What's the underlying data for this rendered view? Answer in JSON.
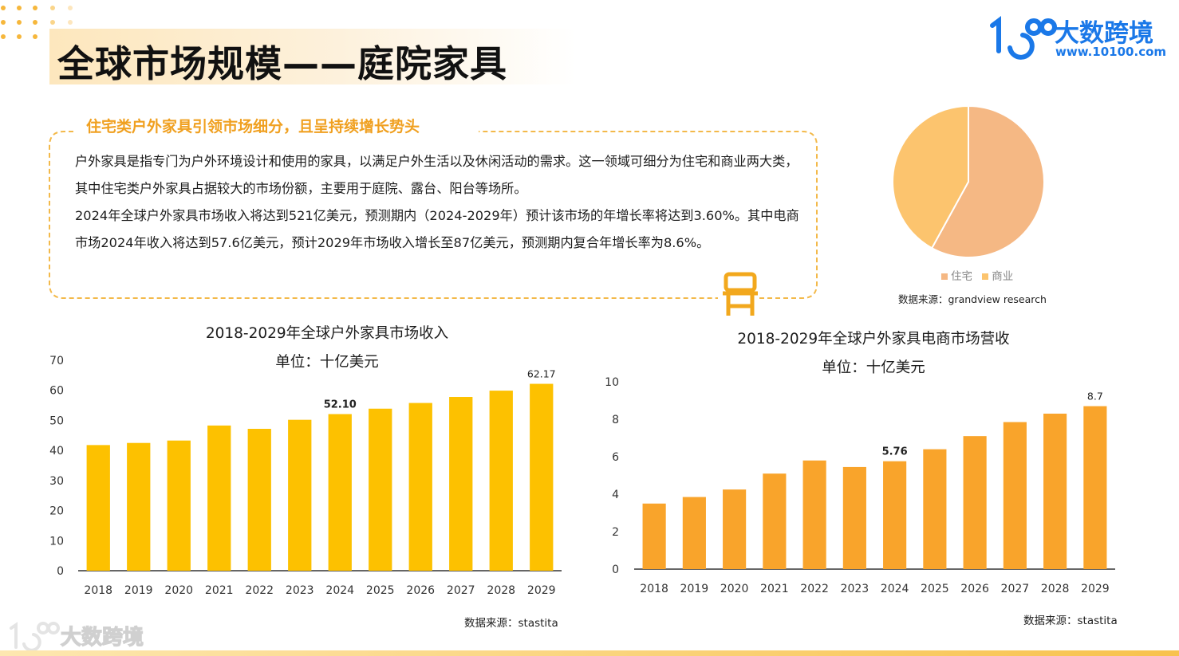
{
  "page": {
    "title": "全球市场规模——庭院家具",
    "logo_name": "大数跨境",
    "logo_url": "www.10100.com",
    "watermark": "大数跨境"
  },
  "summary": {
    "heading": "住宅类户外家具引领市场细分，且呈持续增长势头",
    "paragraph1": "户外家具是指专门为户外环境设计和使用的家具，以满足户外生活以及休闲活动的需求。这一领域可细分为住宅和商业两大类，其中住宅类户外家具占据较大的市场份额，主要用于庭院、露台、阳台等场所。",
    "paragraph2": "2024年全球户外家具市场收入将达到521亿美元，预测期内（2024-2029年）预计该市场的年增长率将达到3.60%。其中电商市场2024年收入将达到57.6亿美元，预计2029年市场收入增长至87亿美元，预测期内复合年增长率为8.6%。"
  },
  "chart_data": [
    {
      "type": "pie",
      "title": "",
      "labels": [
        "住宅",
        "商业"
      ],
      "values": [
        58,
        42
      ],
      "colors": [
        "#f5b884",
        "#fcc46e"
      ],
      "legend_position": "bottom",
      "source": "数据来源：grandview research"
    },
    {
      "type": "bar",
      "title": "2018-2029年全球户外家具市场收入",
      "subtitle": "单位：十亿美元",
      "categories": [
        "2018",
        "2019",
        "2020",
        "2021",
        "2022",
        "2023",
        "2024",
        "2025",
        "2026",
        "2027",
        "2028",
        "2029"
      ],
      "values": [
        41.8,
        42.5,
        43.3,
        48.3,
        47.2,
        50.2,
        52.1,
        53.9,
        55.8,
        57.8,
        59.9,
        62.17
      ],
      "data_labels": {
        "6": "52.10",
        "11": "62.17"
      },
      "ylim": [
        0,
        70
      ],
      "yticks": [
        0,
        10,
        20,
        30,
        40,
        50,
        60,
        70
      ],
      "bar_color": "#fdc100",
      "source": "数据来源：stastita"
    },
    {
      "type": "bar",
      "title": "2018-2029年全球户外家具电商市场营收",
      "subtitle": "单位：十亿美元",
      "categories": [
        "2018",
        "2019",
        "2020",
        "2021",
        "2022",
        "2023",
        "2024",
        "2025",
        "2026",
        "2027",
        "2028",
        "2029"
      ],
      "values": [
        3.5,
        3.85,
        4.25,
        5.1,
        5.8,
        5.45,
        5.76,
        6.4,
        7.1,
        7.85,
        8.3,
        8.7
      ],
      "data_labels": {
        "6": "5.76",
        "11": "8.7"
      },
      "ylim": [
        0,
        10
      ],
      "yticks": [
        0,
        2,
        4,
        6,
        8,
        10
      ],
      "bar_color": "#f9a42b",
      "source": "数据来源：stastita"
    }
  ]
}
